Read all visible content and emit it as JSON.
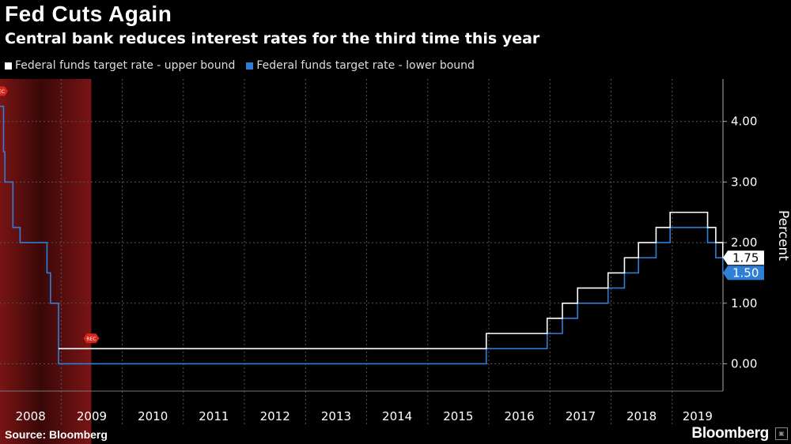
{
  "header": {
    "title": "Fed Cuts Again",
    "subtitle": "Central bank reduces interest rates for the third time this year"
  },
  "footer": {
    "source": "Source: Bloomberg",
    "brand": "Bloomberg"
  },
  "recession_label": "REC",
  "colors": {
    "upper": "#ffffff",
    "lower": "#2e7fd6",
    "recession": "#7a1414",
    "recession_marker": "#d9261c",
    "grid": "#555555"
  },
  "chart_data": {
    "type": "line",
    "step": true,
    "title": "Fed Cuts Again",
    "subtitle": "Central bank reduces interest rates for the third time this year",
    "ylabel": "Percent",
    "xlabel": "",
    "ylim": [
      -0.45,
      4.7
    ],
    "xlim": [
      "2008-01-01",
      "2019-11-01"
    ],
    "y_ticks": [
      0,
      1,
      2,
      3,
      4
    ],
    "y_tick_labels": [
      "0.00",
      "1.00",
      "2.00",
      "3.00",
      "4.00"
    ],
    "x_ticks": [
      "2008",
      "2009",
      "2010",
      "2011",
      "2012",
      "2013",
      "2014",
      "2015",
      "2016",
      "2017",
      "2018",
      "2019"
    ],
    "grid": true,
    "legend_position": "top-left",
    "recession": {
      "start": "2008-01-01",
      "end": "2009-06-30"
    },
    "end_labels": {
      "upper": "1.75",
      "lower": "1.50"
    },
    "series": [
      {
        "name": "Federal funds target rate - upper bound",
        "color": "#ffffff",
        "points": [
          [
            "2008-12-16",
            0.25
          ],
          [
            "2015-12-17",
            0.5
          ],
          [
            "2016-12-15",
            0.75
          ],
          [
            "2017-03-16",
            1.0
          ],
          [
            "2017-06-15",
            1.25
          ],
          [
            "2017-12-14",
            1.5
          ],
          [
            "2018-03-22",
            1.75
          ],
          [
            "2018-06-14",
            2.0
          ],
          [
            "2018-09-27",
            2.25
          ],
          [
            "2018-12-20",
            2.5
          ],
          [
            "2019-08-01",
            2.25
          ],
          [
            "2019-09-19",
            2.0
          ],
          [
            "2019-10-31",
            1.75
          ]
        ]
      },
      {
        "name": "Federal funds target rate - lower bound",
        "color": "#2e7fd6",
        "points": [
          [
            "2008-01-01",
            4.25
          ],
          [
            "2008-01-22",
            3.5
          ],
          [
            "2008-01-30",
            3.0
          ],
          [
            "2008-03-18",
            2.25
          ],
          [
            "2008-04-30",
            2.0
          ],
          [
            "2008-10-08",
            1.5
          ],
          [
            "2008-10-29",
            1.0
          ],
          [
            "2008-12-16",
            0.0
          ],
          [
            "2015-12-17",
            0.25
          ],
          [
            "2016-12-15",
            0.5
          ],
          [
            "2017-03-16",
            0.75
          ],
          [
            "2017-06-15",
            1.0
          ],
          [
            "2017-12-14",
            1.25
          ],
          [
            "2018-03-22",
            1.5
          ],
          [
            "2018-06-14",
            1.75
          ],
          [
            "2018-09-27",
            2.0
          ],
          [
            "2018-12-20",
            2.25
          ],
          [
            "2019-08-01",
            2.0
          ],
          [
            "2019-09-19",
            1.75
          ],
          [
            "2019-10-31",
            1.5
          ]
        ]
      }
    ]
  }
}
